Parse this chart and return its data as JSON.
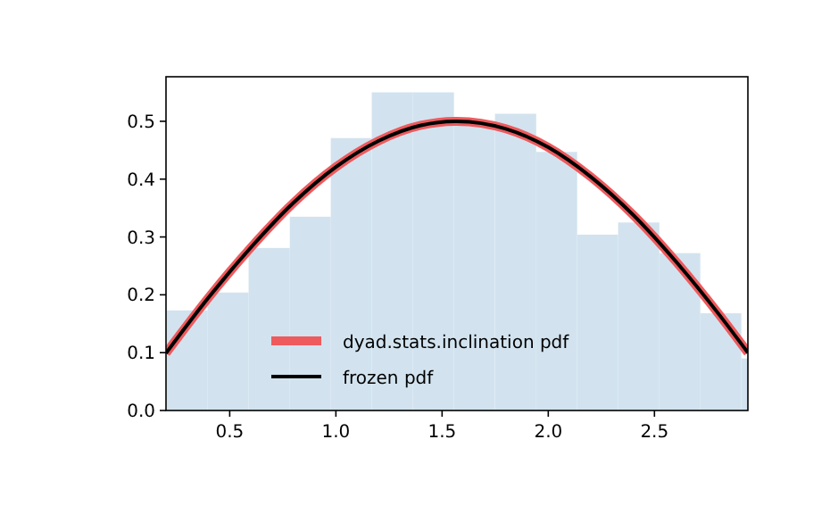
{
  "chart_data": {
    "type": "histogram",
    "bins": [
      0.203,
      0.396,
      0.589,
      0.783,
      0.976,
      1.169,
      1.363,
      1.556,
      1.749,
      1.943,
      2.136,
      2.329,
      2.523,
      2.716,
      2.909,
      3.102
    ],
    "values": [
      0.173,
      0.204,
      0.281,
      0.335,
      0.471,
      0.55,
      0.55,
      0.5,
      0.513,
      0.447,
      0.304,
      0.325,
      0.272,
      0.168,
      0.09
    ],
    "color": "#d2e3ef",
    "series": [
      {
        "type": "line",
        "name": "dyad.stats.inclination pdf",
        "color": "#ee5a5d",
        "x": [
          0.2,
          0.4,
          0.6,
          0.8,
          1.0,
          1.2,
          1.4,
          1.57,
          1.8,
          2.0,
          2.2,
          2.4,
          2.6,
          2.8,
          2.94
        ],
        "values": [
          0.099,
          0.195,
          0.282,
          0.359,
          0.421,
          0.466,
          0.493,
          0.5,
          0.487,
          0.455,
          0.404,
          0.338,
          0.258,
          0.168,
          0.1
        ]
      },
      {
        "type": "line",
        "name": "frozen pdf",
        "color": "#000000",
        "x": [
          0.2,
          0.4,
          0.6,
          0.8,
          1.0,
          1.2,
          1.4,
          1.57,
          1.8,
          2.0,
          2.2,
          2.4,
          2.6,
          2.8,
          2.94
        ],
        "values": [
          0.099,
          0.195,
          0.282,
          0.359,
          0.421,
          0.466,
          0.493,
          0.5,
          0.487,
          0.455,
          0.404,
          0.338,
          0.258,
          0.168,
          0.1
        ]
      }
    ],
    "xlim": [
      0.2,
      2.94
    ],
    "ylim": [
      0,
      0.577
    ],
    "xticks": [
      0.5,
      {
        "value": 1,
        "label": "1.0"
      },
      1.5,
      {
        "value": 2,
        "label": "2.0"
      },
      2.5
    ],
    "yticks": [
      {
        "value": 0,
        "label": "0.0"
      },
      0.1,
      0.2,
      0.3,
      0.4,
      0.5
    ],
    "grid": false,
    "legend": "bottom"
  }
}
